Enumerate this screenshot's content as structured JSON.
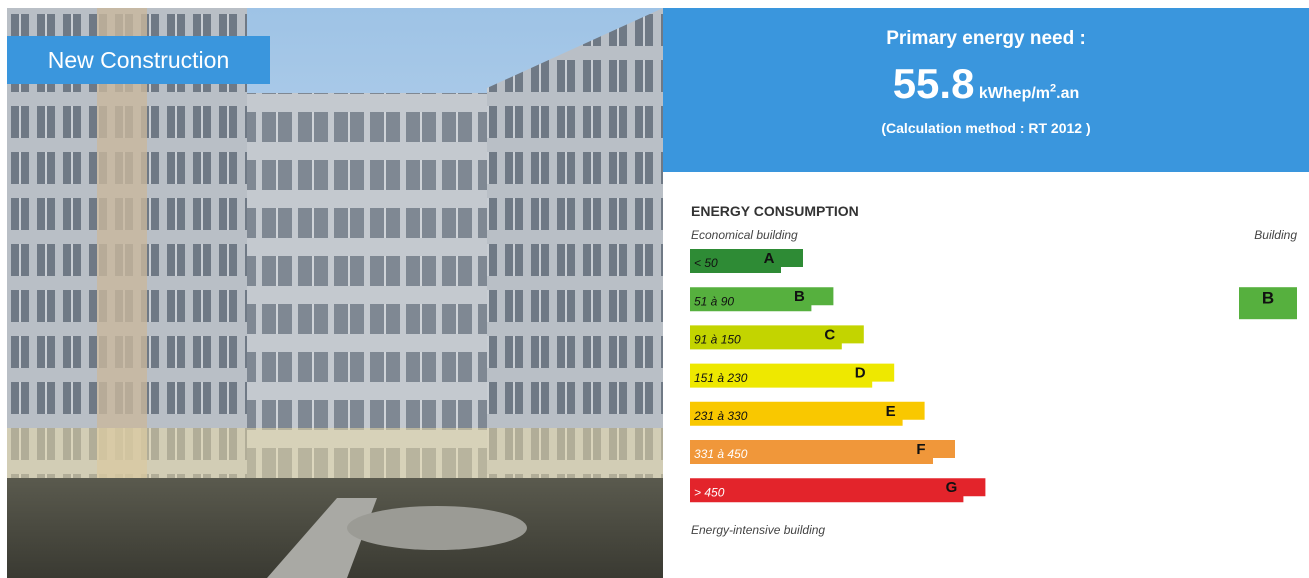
{
  "badge": "New Construction",
  "summary": {
    "title": "Primary energy need :",
    "value": 55.8,
    "unit": "kWhep/m",
    "unit_sup": "2",
    "unit_suffix": ".an",
    "method": "(Calculation method : RT 2012 )"
  },
  "consumption": {
    "title": "ENERGY CONSUMPTION",
    "top_left": "Economical building",
    "top_right": "Building",
    "bottom_left": "Energy-intensive building",
    "classes": [
      {
        "range": "< 50",
        "letter": "A",
        "color": "#2e8b35"
      },
      {
        "range": "51 à 90",
        "letter": "B",
        "color": "#56b03e"
      },
      {
        "range": "91 à 150",
        "letter": "C",
        "color": "#c3d400"
      },
      {
        "range": "151 à 230",
        "letter": "D",
        "color": "#eee800"
      },
      {
        "range": "231 à 330",
        "letter": "E",
        "color": "#f9c800"
      },
      {
        "range": "331 à 450",
        "letter": "F",
        "color": "#f0973a"
      },
      {
        "range": "> 450",
        "letter": "G",
        "color": "#e3242b"
      }
    ],
    "building_class": "B"
  }
}
